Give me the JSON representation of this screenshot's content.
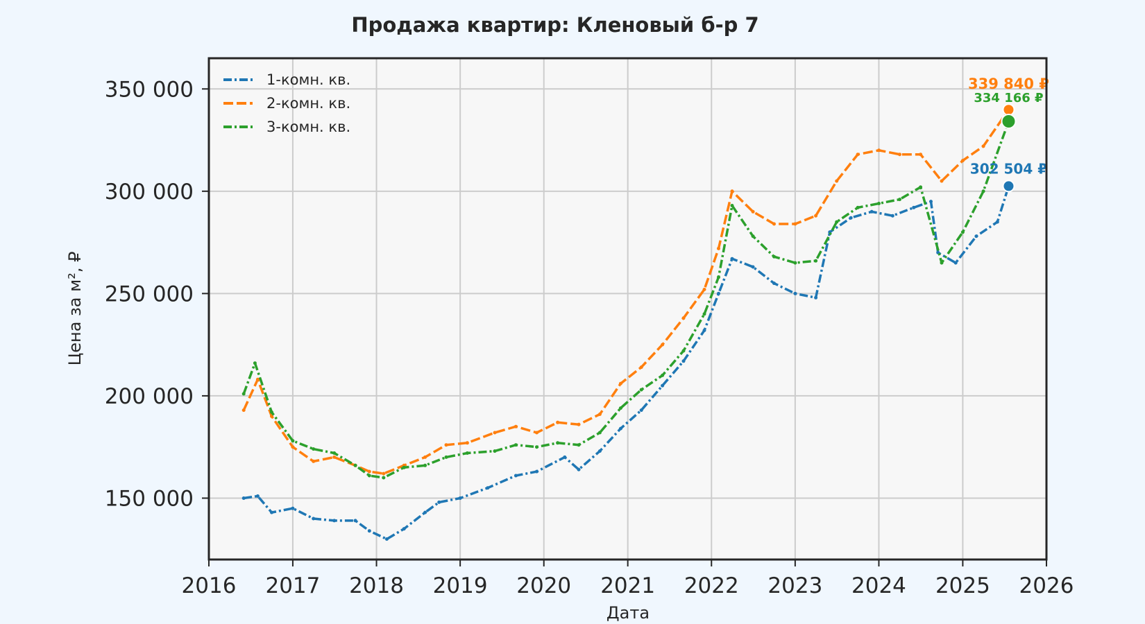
{
  "chart_data": {
    "type": "line",
    "title": "Продажа квартир: Кленовый б-р 7",
    "xlabel": "Дата",
    "ylabel": "Цена за м², ₽",
    "xlim": [
      "2016-01-01",
      "2026-01-01"
    ],
    "ylim": [
      120000,
      365000
    ],
    "x_ticks": [
      "2016",
      "2017",
      "2018",
      "2019",
      "2020",
      "2021",
      "2022",
      "2023",
      "2024",
      "2025",
      "2026"
    ],
    "y_ticks": [
      150000,
      200000,
      250000,
      300000,
      350000
    ],
    "y_tick_labels": [
      "150 000",
      "200 000",
      "250 000",
      "300 000",
      "350 000"
    ],
    "grid": true,
    "legend_position": "top-left",
    "series": [
      {
        "name": "1-комн. кв.",
        "color": "#1f77b4",
        "dash": "dashdot",
        "points": [
          [
            "2016-06-01",
            150000
          ],
          [
            "2016-08-01",
            151000
          ],
          [
            "2016-10-01",
            143000
          ],
          [
            "2017-01-01",
            145000
          ],
          [
            "2017-04-01",
            140000
          ],
          [
            "2017-07-01",
            139000
          ],
          [
            "2017-10-01",
            139000
          ],
          [
            "2017-12-01",
            134000
          ],
          [
            "2018-02-15",
            130000
          ],
          [
            "2018-05-01",
            135000
          ],
          [
            "2018-08-01",
            143000
          ],
          [
            "2018-10-01",
            148000
          ],
          [
            "2019-01-01",
            150000
          ],
          [
            "2019-05-01",
            155000
          ],
          [
            "2019-09-01",
            161000
          ],
          [
            "2019-12-01",
            163000
          ],
          [
            "2020-04-01",
            170000
          ],
          [
            "2020-06-01",
            164000
          ],
          [
            "2020-09-01",
            173000
          ],
          [
            "2020-12-01",
            184000
          ],
          [
            "2021-03-01",
            193000
          ],
          [
            "2021-06-01",
            205000
          ],
          [
            "2021-09-01",
            217000
          ],
          [
            "2021-12-01",
            232000
          ],
          [
            "2022-02-01",
            250000
          ],
          [
            "2022-04-01",
            267000
          ],
          [
            "2022-07-01",
            263000
          ],
          [
            "2022-10-01",
            255000
          ],
          [
            "2023-01-01",
            250000
          ],
          [
            "2023-04-01",
            248000
          ],
          [
            "2023-06-01",
            280000
          ],
          [
            "2023-09-01",
            287000
          ],
          [
            "2023-12-01",
            290000
          ],
          [
            "2024-03-01",
            288000
          ],
          [
            "2024-06-01",
            292000
          ],
          [
            "2024-08-15",
            295000
          ],
          [
            "2024-09-15",
            270000
          ],
          [
            "2024-12-01",
            265000
          ],
          [
            "2025-03-01",
            278000
          ],
          [
            "2025-06-01",
            285000
          ],
          [
            "2025-07-20",
            302504
          ]
        ]
      },
      {
        "name": "2-комн. кв.",
        "color": "#ff7f0e",
        "dash": "dashed",
        "points": [
          [
            "2016-06-01",
            193000
          ],
          [
            "2016-08-01",
            208000
          ],
          [
            "2016-10-01",
            190000
          ],
          [
            "2017-01-01",
            175000
          ],
          [
            "2017-04-01",
            168000
          ],
          [
            "2017-07-01",
            170000
          ],
          [
            "2017-10-01",
            166000
          ],
          [
            "2017-12-01",
            163000
          ],
          [
            "2018-02-01",
            162000
          ],
          [
            "2018-05-01",
            166000
          ],
          [
            "2018-08-01",
            170000
          ],
          [
            "2018-11-01",
            176000
          ],
          [
            "2019-02-01",
            177000
          ],
          [
            "2019-06-01",
            182000
          ],
          [
            "2019-09-01",
            185000
          ],
          [
            "2019-12-01",
            182000
          ],
          [
            "2020-03-01",
            187000
          ],
          [
            "2020-06-01",
            186000
          ],
          [
            "2020-09-01",
            191000
          ],
          [
            "2020-12-01",
            206000
          ],
          [
            "2021-03-01",
            214000
          ],
          [
            "2021-06-01",
            225000
          ],
          [
            "2021-09-01",
            238000
          ],
          [
            "2021-12-01",
            252000
          ],
          [
            "2022-02-01",
            272000
          ],
          [
            "2022-04-01",
            300000
          ],
          [
            "2022-07-01",
            290000
          ],
          [
            "2022-10-01",
            284000
          ],
          [
            "2023-01-01",
            284000
          ],
          [
            "2023-04-01",
            288000
          ],
          [
            "2023-07-01",
            305000
          ],
          [
            "2023-10-01",
            318000
          ],
          [
            "2024-01-01",
            320000
          ],
          [
            "2024-04-01",
            318000
          ],
          [
            "2024-07-01",
            318000
          ],
          [
            "2024-10-01",
            305000
          ],
          [
            "2025-01-01",
            315000
          ],
          [
            "2025-04-01",
            322000
          ],
          [
            "2025-07-20",
            339840
          ]
        ]
      },
      {
        "name": "3-комн. кв.",
        "color": "#2ca02c",
        "dash": "dashdot",
        "points": [
          [
            "2016-06-01",
            201000
          ],
          [
            "2016-07-20",
            216000
          ],
          [
            "2016-10-01",
            192000
          ],
          [
            "2017-01-01",
            178000
          ],
          [
            "2017-04-01",
            174000
          ],
          [
            "2017-07-01",
            172000
          ],
          [
            "2017-10-01",
            166000
          ],
          [
            "2017-12-01",
            161000
          ],
          [
            "2018-02-01",
            160000
          ],
          [
            "2018-05-01",
            165000
          ],
          [
            "2018-08-01",
            166000
          ],
          [
            "2018-11-01",
            170000
          ],
          [
            "2019-02-01",
            172000
          ],
          [
            "2019-06-01",
            173000
          ],
          [
            "2019-09-01",
            176000
          ],
          [
            "2019-12-01",
            175000
          ],
          [
            "2020-03-01",
            177000
          ],
          [
            "2020-06-01",
            176000
          ],
          [
            "2020-09-01",
            182000
          ],
          [
            "2020-12-01",
            194000
          ],
          [
            "2021-03-01",
            203000
          ],
          [
            "2021-06-01",
            210000
          ],
          [
            "2021-09-01",
            222000
          ],
          [
            "2021-12-01",
            240000
          ],
          [
            "2022-02-01",
            258000
          ],
          [
            "2022-04-01",
            293000
          ],
          [
            "2022-07-01",
            278000
          ],
          [
            "2022-10-01",
            268000
          ],
          [
            "2023-01-01",
            265000
          ],
          [
            "2023-04-01",
            266000
          ],
          [
            "2023-07-01",
            285000
          ],
          [
            "2023-10-01",
            292000
          ],
          [
            "2024-01-01",
            294000
          ],
          [
            "2024-04-01",
            296000
          ],
          [
            "2024-07-01",
            302000
          ],
          [
            "2024-10-01",
            265000
          ],
          [
            "2025-01-01",
            280000
          ],
          [
            "2025-04-01",
            300000
          ],
          [
            "2025-07-20",
            334166
          ]
        ]
      }
    ],
    "end_labels": [
      {
        "series": "2-комн. кв.",
        "text": "339 840 ₽",
        "value": 339840,
        "color": "#ff7f0e"
      },
      {
        "series": "3-комн. кв.",
        "text": "334 166 ₽",
        "value": 334166,
        "color": "#2ca02c"
      },
      {
        "series": "1-комн. кв.",
        "text": "302 504 ₽",
        "value": 302504,
        "color": "#1f77b4"
      }
    ]
  }
}
